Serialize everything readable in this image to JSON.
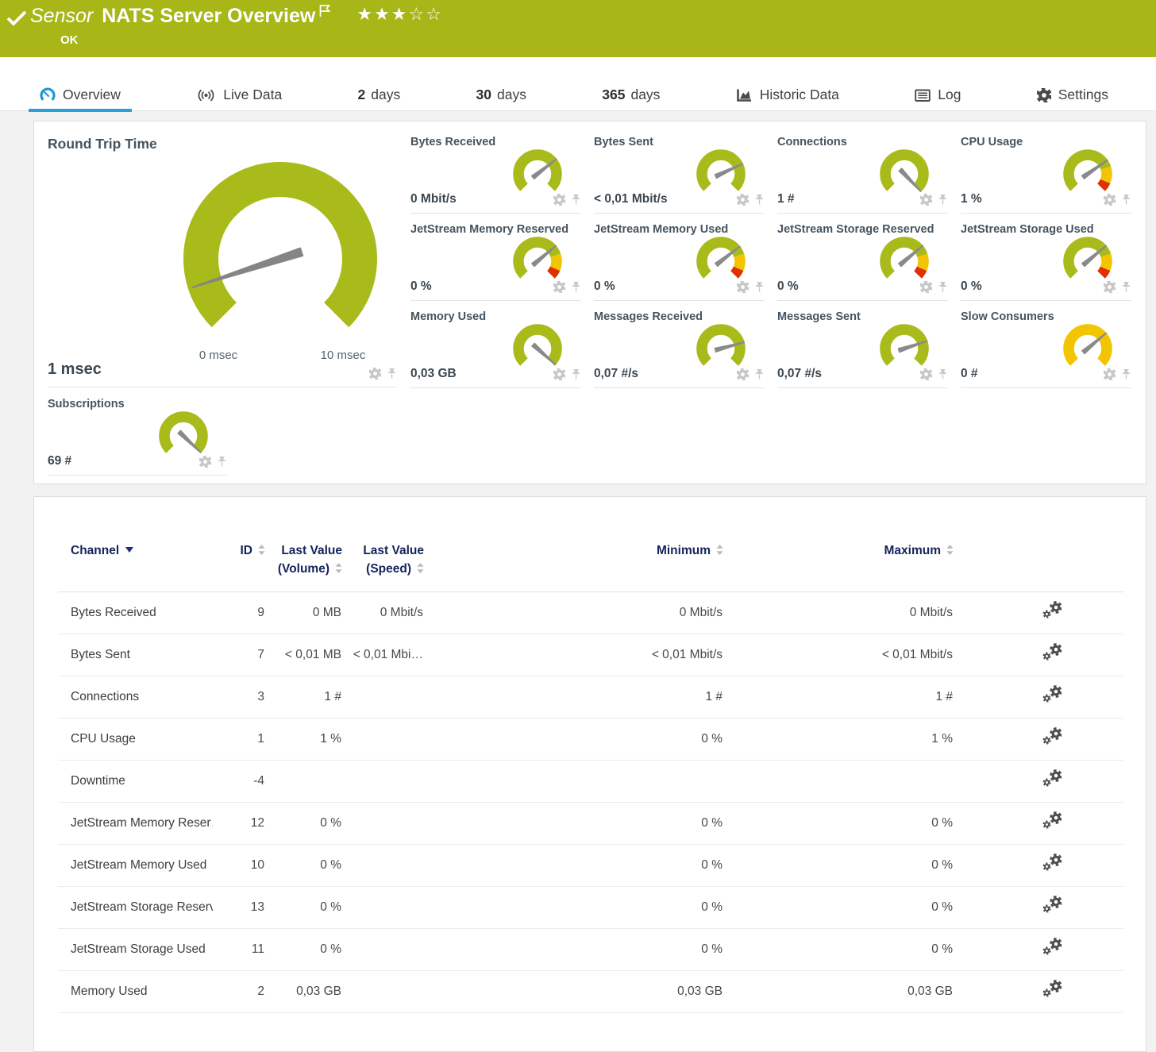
{
  "header": {
    "sensor_label": "Sensor",
    "sensor_name": "NATS Server Overview",
    "status": "OK",
    "rating": {
      "filled": 3,
      "total": 5
    }
  },
  "tabs": [
    {
      "id": "overview",
      "icon": "gauge-icon",
      "label": "Overview",
      "active": true
    },
    {
      "id": "live-data",
      "icon": "broadcast-icon",
      "label": "Live Data"
    },
    {
      "id": "2-days",
      "prefix": "2",
      "label": "days"
    },
    {
      "id": "30-days",
      "prefix": "30",
      "label": "days"
    },
    {
      "id": "365-days",
      "prefix": "365",
      "label": "days"
    },
    {
      "id": "historic-data",
      "icon": "chart-icon",
      "label": "Historic Data"
    },
    {
      "id": "log",
      "icon": "log-icon",
      "label": "Log"
    },
    {
      "id": "settings",
      "icon": "cog-icon",
      "label": "Settings"
    }
  ],
  "gauges": {
    "main": {
      "title": "Round Trip Time",
      "value": "1 msec",
      "scale_min": "0 msec",
      "scale_max": "10 msec",
      "type": "green",
      "needle_deg": 162
    },
    "small": [
      {
        "title": "Bytes Received",
        "value": "0 Mbit/s",
        "type": "green",
        "needle_deg": 322
      },
      {
        "title": "Bytes Sent",
        "value": "< 0,01 Mbit/s",
        "type": "green",
        "needle_deg": 335
      },
      {
        "title": "Connections",
        "value": "1 #",
        "type": "green",
        "needle_deg": 47
      },
      {
        "title": "CPU Usage",
        "value": "1 %",
        "type": "warn",
        "needle_deg": 325
      },
      {
        "title": "JetStream Memory Reserved",
        "value": "0 %",
        "type": "warn",
        "needle_deg": 320
      },
      {
        "title": "JetStream Memory Used",
        "value": "0 %",
        "type": "warn",
        "needle_deg": 322
      },
      {
        "title": "JetStream Storage Reserved",
        "value": "0 %",
        "type": "warn",
        "needle_deg": 320
      },
      {
        "title": "JetStream Storage Used",
        "value": "0 %",
        "type": "warn",
        "needle_deg": 320
      },
      {
        "title": "Memory Used",
        "value": "0,03 GB",
        "type": "green",
        "needle_deg": 42
      },
      {
        "title": "Messages Received",
        "value": "0,07 #/s",
        "type": "green",
        "needle_deg": 345
      },
      {
        "title": "Messages Sent",
        "value": "0,07 #/s",
        "type": "green",
        "needle_deg": 342
      },
      {
        "title": "Slow Consumers",
        "value": "0 #",
        "type": "gold",
        "needle_deg": 320
      }
    ],
    "subscriptions": {
      "title": "Subscriptions",
      "value": "69 #",
      "type": "green",
      "needle_deg": 44
    }
  },
  "table": {
    "columns": [
      {
        "label": "Channel",
        "label2": "",
        "sort": "active-desc"
      },
      {
        "label": "ID",
        "label2": "",
        "sort": "both"
      },
      {
        "label": "Last Value",
        "label2": "(Volume)",
        "sort": "both"
      },
      {
        "label": "Last Value",
        "label2": "(Speed)",
        "sort": "both"
      },
      {
        "label": "Minimum",
        "label2": "",
        "sort": "both"
      },
      {
        "label": "Maximum",
        "label2": "",
        "sort": "both"
      },
      {
        "label": "",
        "label2": "",
        "sort": "none"
      }
    ],
    "rows": [
      {
        "channel": "Bytes Received",
        "id": "9",
        "volume": "0 MB",
        "speed": "0 Mbit/s",
        "min": "0 Mbit/s",
        "max": "0 Mbit/s"
      },
      {
        "channel": "Bytes Sent",
        "id": "7",
        "volume": "< 0,01 MB",
        "speed": "< 0,01 Mbi…",
        "min": "< 0,01 Mbit/s",
        "max": "< 0,01 Mbit/s"
      },
      {
        "channel": "Connections",
        "id": "3",
        "volume": "1 #",
        "speed": "",
        "min": "1 #",
        "max": "1 #"
      },
      {
        "channel": "CPU Usage",
        "id": "1",
        "volume": "1 %",
        "speed": "",
        "min": "0 %",
        "max": "1 %"
      },
      {
        "channel": "Downtime",
        "id": "-4",
        "volume": "",
        "speed": "",
        "min": "",
        "max": ""
      },
      {
        "channel": "JetStream Memory Reser…",
        "id": "12",
        "volume": "0 %",
        "speed": "",
        "min": "0 %",
        "max": "0 %"
      },
      {
        "channel": "JetStream Memory Used",
        "id": "10",
        "volume": "0 %",
        "speed": "",
        "min": "0 %",
        "max": "0 %"
      },
      {
        "channel": "JetStream Storage Reserv…",
        "id": "13",
        "volume": "0 %",
        "speed": "",
        "min": "0 %",
        "max": "0 %"
      },
      {
        "channel": "JetStream Storage Used",
        "id": "11",
        "volume": "0 %",
        "speed": "",
        "min": "0 %",
        "max": "0 %"
      },
      {
        "channel": "Memory Used",
        "id": "2",
        "volume": "0,03 GB",
        "speed": "",
        "min": "0,03 GB",
        "max": "0,03 GB"
      }
    ]
  },
  "colors": {
    "brand_green": "#a8b618",
    "gauge_green": "#a9ba1b",
    "gauge_gold": "#f2c500",
    "gauge_red": "#e03000",
    "accent_blue": "#2b9fd8",
    "needle_gray": "#8a8a8a",
    "header_navy": "#14235a"
  }
}
